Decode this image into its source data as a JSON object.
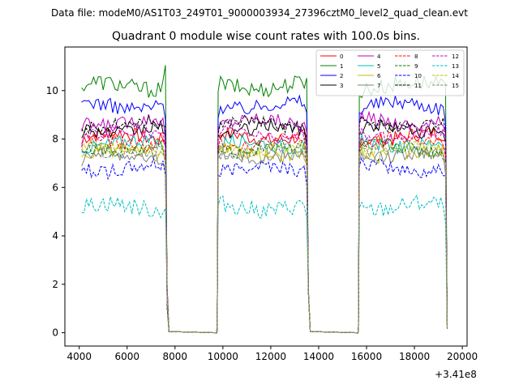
{
  "chart_data": {
    "type": "line",
    "suptitle": "Data file: modeM0/AS1T03_249T01_9000003934_27396cztM0_level2_quad_clean.evt",
    "title": "Quadrant 0 module wise count rates with 100.0s bins.",
    "xlabel": "",
    "ylabel": "",
    "x_offset_label": "+3.41e8",
    "xlim": [
      3400,
      20200
    ],
    "ylim": [
      -0.55,
      11.8
    ],
    "x_ticks": [
      4000,
      6000,
      8000,
      10000,
      12000,
      14000,
      16000,
      18000,
      20000
    ],
    "y_ticks": [
      0,
      2,
      4,
      6,
      8,
      10
    ],
    "gaps": [
      [
        7700,
        9800
      ],
      [
        13500,
        15700
      ]
    ],
    "segments": [
      [
        4100,
        7600
      ],
      [
        9800,
        13500
      ],
      [
        15700,
        19350
      ]
    ],
    "legend_position": "upper-right",
    "series": [
      {
        "name": "0",
        "color": "#ff0000",
        "dash": "solid",
        "level": 8.1,
        "amp": 0.3
      },
      {
        "name": "1",
        "color": "#008000",
        "dash": "solid",
        "level": 10.2,
        "amp": 0.35
      },
      {
        "name": "2",
        "color": "#0000ff",
        "dash": "solid",
        "level": 9.4,
        "amp": 0.3
      },
      {
        "name": "3",
        "color": "#000000",
        "dash": "solid",
        "level": 8.4,
        "amp": 0.28
      },
      {
        "name": "4",
        "color": "#bf00bf",
        "dash": "solid",
        "level": 8.7,
        "amp": 0.28
      },
      {
        "name": "5",
        "color": "#00bfbf",
        "dash": "solid",
        "level": 7.8,
        "amp": 0.28
      },
      {
        "name": "6",
        "color": "#bfbf00",
        "dash": "solid",
        "level": 7.4,
        "amp": 0.28
      },
      {
        "name": "7",
        "color": "#808080",
        "dash": "solid",
        "level": 7.3,
        "amp": 0.28
      },
      {
        "name": "8",
        "color": "#ff0000",
        "dash": "dashed",
        "level": 7.9,
        "amp": 0.28
      },
      {
        "name": "9",
        "color": "#008000",
        "dash": "dashed",
        "level": 7.6,
        "amp": 0.28
      },
      {
        "name": "10",
        "color": "#0000ff",
        "dash": "dashed",
        "level": 6.8,
        "amp": 0.3
      },
      {
        "name": "11",
        "color": "#000000",
        "dash": "dashed",
        "level": 8.6,
        "amp": 0.25
      },
      {
        "name": "12",
        "color": "#bf00bf",
        "dash": "dashed",
        "level": 8.2,
        "amp": 0.25
      },
      {
        "name": "13",
        "color": "#00bfbf",
        "dash": "dashed",
        "level": 5.2,
        "amp": 0.35
      },
      {
        "name": "14",
        "color": "#bfbf00",
        "dash": "dashed",
        "level": 7.6,
        "amp": 0.25
      },
      {
        "name": "15",
        "color": "#808080",
        "dash": "dashed",
        "level": 7.5,
        "amp": 0.25
      }
    ]
  }
}
